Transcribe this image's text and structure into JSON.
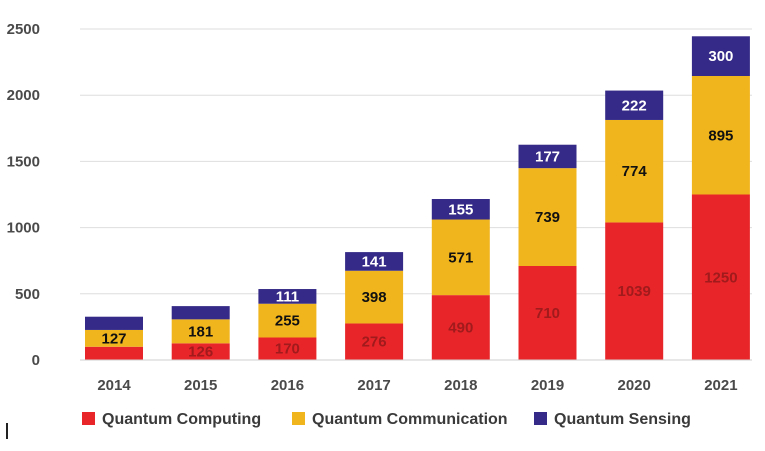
{
  "chart_data": {
    "type": "bar",
    "stacked": true,
    "categories": [
      "2014",
      "2015",
      "2016",
      "2017",
      "2018",
      "2019",
      "2020",
      "2021"
    ],
    "series": [
      {
        "name": "Quantum Computing",
        "color": "#e8262a",
        "label_color": "#a11a1c",
        "values": [
          100,
          126,
          170,
          276,
          490,
          710,
          1039,
          1250
        ],
        "labels": [
          "",
          "126",
          "170",
          "276",
          "490",
          "710",
          "1039",
          "1250"
        ]
      },
      {
        "name": "Quantum Communication",
        "color": "#f0b41c",
        "label_color": "#111111",
        "values": [
          127,
          181,
          255,
          398,
          571,
          739,
          774,
          895
        ],
        "labels": [
          "127",
          "181",
          "255",
          "398",
          "571",
          "739",
          "774",
          "895"
        ]
      },
      {
        "name": "Quantum Sensing",
        "color": "#352a87",
        "label_color": "#ffffff",
        "values": [
          100,
          100,
          111,
          141,
          155,
          177,
          222,
          300
        ],
        "labels": [
          "",
          "",
          "111",
          "141",
          "155",
          "177",
          "222",
          "300"
        ]
      }
    ],
    "yticks": [
      0,
      500,
      1000,
      1500,
      2000,
      2500
    ],
    "ylim": [
      0,
      2500
    ],
    "title": "",
    "xlabel": "",
    "ylabel": "",
    "grid": true,
    "legend_position": "bottom"
  }
}
